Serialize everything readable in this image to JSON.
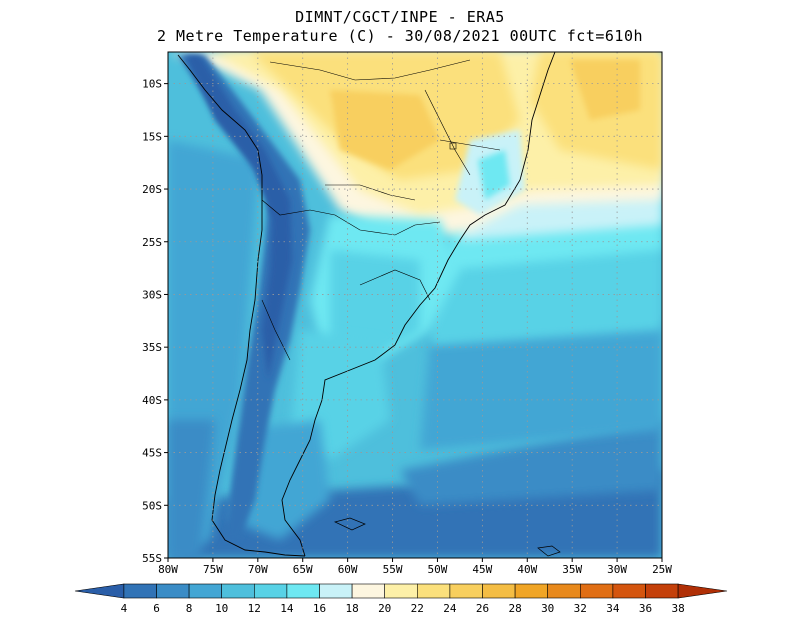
{
  "header": {
    "line1": "DIMNT/CGCT/INPE -  ERA5",
    "line2": "2 Metre Temperature (C) -  30/08/2021 00UTC fct=610h"
  },
  "map": {
    "lon_range": [
      -80,
      -25
    ],
    "lat_range": [
      -55,
      -7
    ],
    "lat_labels": [
      "10S",
      "15S",
      "20S",
      "25S",
      "30S",
      "35S",
      "40S",
      "45S",
      "50S",
      "55S"
    ],
    "lat_values": [
      -10,
      -15,
      -20,
      -25,
      -30,
      -35,
      -40,
      -45,
      -50,
      -55
    ],
    "lon_labels": [
      "80W",
      "75W",
      "70W",
      "65W",
      "60W",
      "55W",
      "50W",
      "45W",
      "40W",
      "35W",
      "30W",
      "25W"
    ],
    "lon_values": [
      -80,
      -75,
      -70,
      -65,
      -60,
      -55,
      -50,
      -45,
      -40,
      -35,
      -30,
      -25
    ],
    "grid": "dotted"
  },
  "colorbar": {
    "labels": [
      "4",
      "6",
      "8",
      "10",
      "12",
      "14",
      "16",
      "18",
      "20",
      "22",
      "24",
      "26",
      "28",
      "30",
      "32",
      "34",
      "36",
      "38"
    ],
    "colors": [
      "#2a5ea8",
      "#3173b6",
      "#3a8cc6",
      "#43a6d4",
      "#4ebfdc",
      "#58d2e6",
      "#6ee8f2",
      "#c9f2f8",
      "#fdf6e0",
      "#fdf0a8",
      "#fbe07c",
      "#f8cf5e",
      "#f4bd44",
      "#f0a526",
      "#e8891c",
      "#e06e14",
      "#d4550e",
      "#c4400a",
      "#b02f06"
    ]
  }
}
